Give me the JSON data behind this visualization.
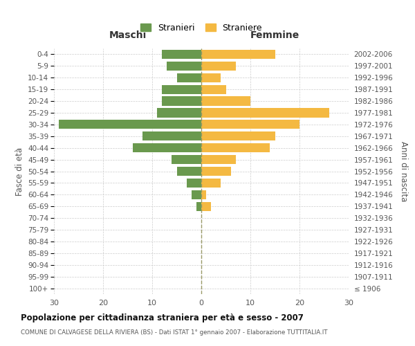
{
  "age_groups": [
    "100+",
    "95-99",
    "90-94",
    "85-89",
    "80-84",
    "75-79",
    "70-74",
    "65-69",
    "60-64",
    "55-59",
    "50-54",
    "45-49",
    "40-44",
    "35-39",
    "30-34",
    "25-29",
    "20-24",
    "15-19",
    "10-14",
    "5-9",
    "0-4"
  ],
  "birth_years": [
    "≤ 1906",
    "1907-1911",
    "1912-1916",
    "1917-1921",
    "1922-1926",
    "1927-1931",
    "1932-1936",
    "1937-1941",
    "1942-1946",
    "1947-1951",
    "1952-1956",
    "1957-1961",
    "1962-1966",
    "1967-1971",
    "1972-1976",
    "1977-1981",
    "1982-1986",
    "1987-1991",
    "1992-1996",
    "1997-2001",
    "2002-2006"
  ],
  "males": [
    0,
    0,
    0,
    0,
    0,
    0,
    0,
    1,
    2,
    3,
    5,
    6,
    14,
    12,
    29,
    9,
    8,
    8,
    5,
    7,
    8
  ],
  "females": [
    0,
    0,
    0,
    0,
    0,
    0,
    0,
    2,
    1,
    4,
    6,
    7,
    14,
    15,
    20,
    26,
    10,
    5,
    4,
    7,
    15
  ],
  "male_color": "#6a994e",
  "female_color": "#f4b942",
  "background_color": "#ffffff",
  "grid_color": "#cccccc",
  "title": "Popolazione per cittadinanza straniera per età e sesso - 2007",
  "subtitle": "COMUNE DI CALVAGESE DELLA RIVIERA (BS) - Dati ISTAT 1° gennaio 2007 - Elaborazione TUTTITALIA.IT",
  "legend_stranieri": "Stranieri",
  "legend_straniere": "Straniere",
  "xlabel_left": "Maschi",
  "xlabel_right": "Femmine",
  "ylabel_left": "Fasce di età",
  "ylabel_right": "Anni di nascita",
  "xlim": 30
}
